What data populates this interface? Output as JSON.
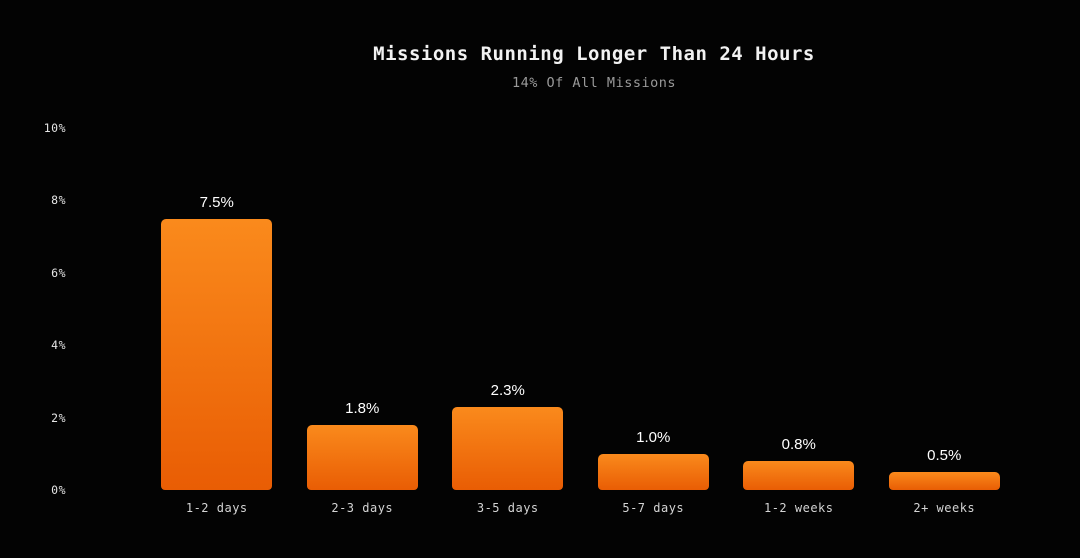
{
  "page": {
    "background_color": "#030303"
  },
  "chart_data": {
    "type": "bar",
    "title": "Missions Running Longer Than 24 Hours",
    "subtitle": "14% Of All Missions",
    "categories": [
      "1-2 days",
      "2-3 days",
      "3-5 days",
      "5-7 days",
      "1-2 weeks",
      "2+ weeks"
    ],
    "values": [
      7.5,
      1.8,
      2.3,
      1.0,
      0.8,
      0.5
    ],
    "value_labels": [
      "7.5%",
      "1.8%",
      "2.3%",
      "1.0%",
      "0.8%",
      "0.5%"
    ],
    "xlabel": "",
    "ylabel": "",
    "ylim": [
      0,
      10
    ],
    "yticks": [
      0,
      2,
      4,
      6,
      8,
      10
    ],
    "ytick_labels": [
      "0%",
      "2%",
      "4%",
      "6%",
      "8%",
      "10%"
    ],
    "grid": false,
    "legend": "none",
    "bar_color_top": "#fa8a1c",
    "bar_color_bottom": "#e95d04",
    "title_color": "#f2f2f2",
    "subtitle_color": "#9a9a9a",
    "tick_label_color": "#e6e6e6",
    "category_label_color": "#d4d4d4",
    "value_label_color": "#ffffff"
  }
}
